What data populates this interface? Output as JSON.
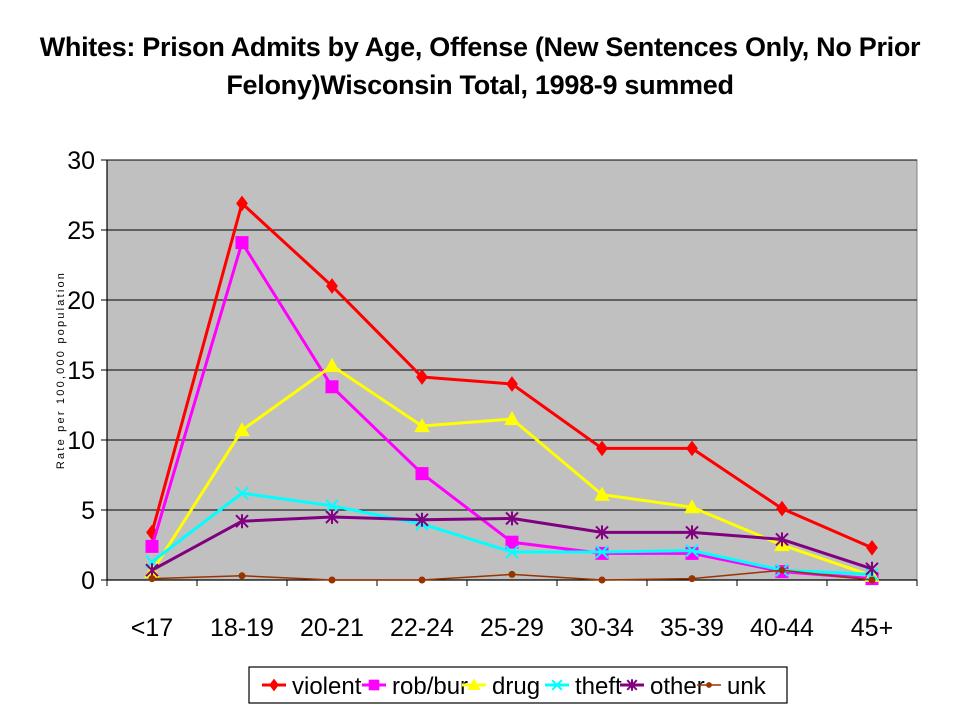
{
  "chart_data": {
    "type": "line",
    "title_lines": [
      "Whites: Prison Admits by Age, Offense (New Sentences Only, No Prior",
      "Felony)Wisconsin Total, 1998-9 summed"
    ],
    "xlabel": "",
    "ylabel": "Rate per 100,000 population",
    "ylim": [
      0,
      30
    ],
    "yticks": [
      "0",
      "5",
      "10",
      "15",
      "20",
      "25",
      "30"
    ],
    "grid": "horizontal",
    "legend_position": "bottom",
    "categories": [
      "<17",
      "18-19",
      "20-21",
      "22-24",
      "25-29",
      "30-34",
      "35-39",
      "40-44",
      "45+"
    ],
    "series": [
      {
        "name": "violent",
        "color": "#ff0000",
        "marker": "diamond",
        "values": [
          3.4,
          26.9,
          21.0,
          14.5,
          14.0,
          9.4,
          9.4,
          5.1,
          2.3
        ]
      },
      {
        "name": "rob/bur",
        "color": "#ff00ff",
        "marker": "square",
        "values": [
          2.4,
          24.1,
          13.8,
          7.6,
          2.7,
          1.9,
          1.9,
          0.6,
          0.1
        ]
      },
      {
        "name": "drug",
        "color": "#ffff00",
        "marker": "triangle",
        "values": [
          0.6,
          10.7,
          15.3,
          11.0,
          11.5,
          6.1,
          5.2,
          2.5,
          0.3
        ]
      },
      {
        "name": "theft",
        "color": "#00ffff",
        "marker": "x",
        "values": [
          1.3,
          6.2,
          5.3,
          4.0,
          2.0,
          2.0,
          2.1,
          0.7,
          0.4
        ]
      },
      {
        "name": "other",
        "color": "#800080",
        "marker": "asterisk",
        "values": [
          0.7,
          4.2,
          4.5,
          4.3,
          4.4,
          3.4,
          3.4,
          2.9,
          0.8
        ]
      },
      {
        "name": "unk",
        "color": "#993300",
        "marker": "dot",
        "values": [
          0.1,
          0.3,
          0.0,
          0.0,
          0.4,
          0.0,
          0.1,
          0.7,
          0.0
        ]
      }
    ]
  }
}
